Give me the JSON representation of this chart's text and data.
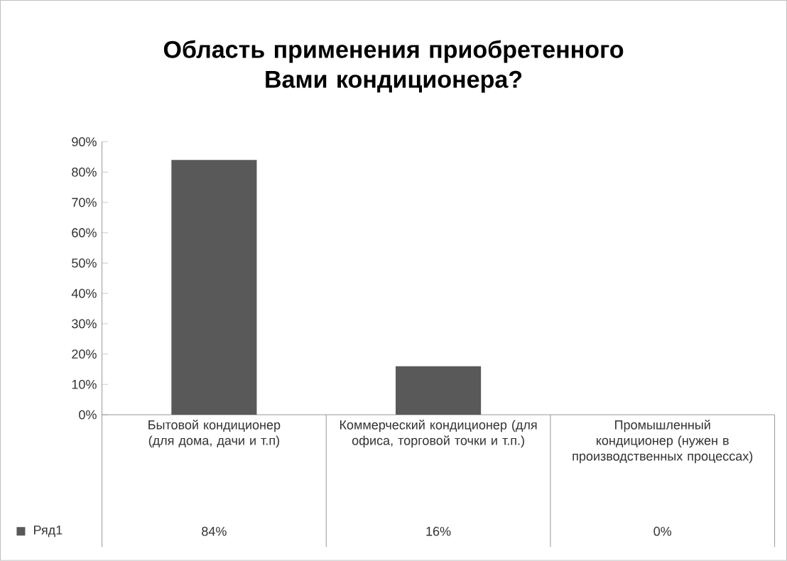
{
  "chart_data": {
    "type": "bar",
    "title": "Область применения приобретенного Вами кондиционера?",
    "categories": [
      "Бытовой кондиционер (для дома, дачи и т.п)",
      "Коммерческий кондиционер (для офиса, торговой точки и т.п.)",
      "Промышленный кондиционер (нужен в производственных процессах)"
    ],
    "series": [
      {
        "name": "Ряд1",
        "color": "#595959",
        "values": [
          84,
          16,
          0
        ],
        "value_labels": [
          "84%",
          "16%",
          "0%"
        ]
      }
    ],
    "ylim": [
      0,
      90
    ],
    "yticks": [
      {
        "value": 0,
        "label": "0%"
      },
      {
        "value": 10,
        "label": "10%"
      },
      {
        "value": 20,
        "label": "20%"
      },
      {
        "value": 30,
        "label": "30%"
      },
      {
        "value": 40,
        "label": "40%"
      },
      {
        "value": 50,
        "label": "50%"
      },
      {
        "value": 60,
        "label": "60%"
      },
      {
        "value": 70,
        "label": "70%"
      },
      {
        "value": 80,
        "label": "80%"
      },
      {
        "value": 90,
        "label": "90%"
      }
    ],
    "legend": "bottom left"
  }
}
